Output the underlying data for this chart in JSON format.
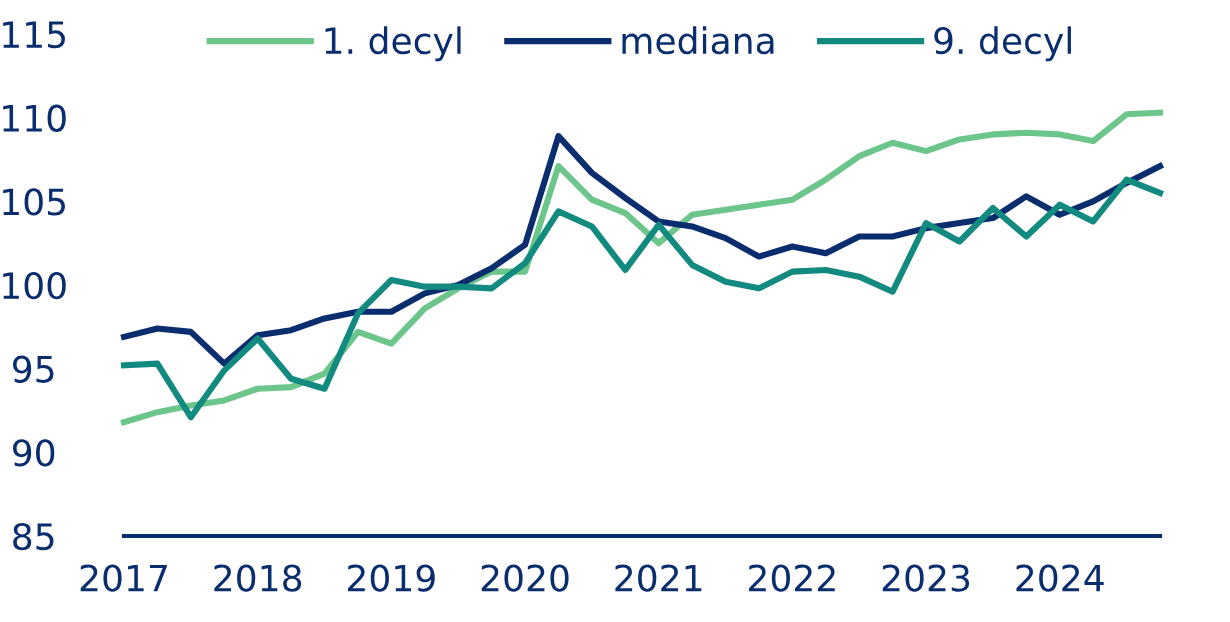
{
  "chart_data": {
    "type": "line",
    "x": [
      2017,
      2017.25,
      2017.5,
      2017.75,
      2018,
      2018.25,
      2018.5,
      2018.75,
      2019,
      2019.25,
      2019.5,
      2019.75,
      2020,
      2020.25,
      2020.5,
      2020.75,
      2021,
      2021.25,
      2021.5,
      2021.75,
      2022,
      2022.25,
      2022.5,
      2022.75,
      2023,
      2023.25,
      2023.5,
      2023.75,
      2024,
      2024.25,
      2024.5,
      2024.75
    ],
    "series": [
      {
        "name": "1. decyl",
        "color": "#6cc58a",
        "values": [
          91.8,
          92.4,
          92.8,
          93.1,
          93.8,
          93.9,
          94.7,
          97.2,
          96.5,
          98.6,
          99.8,
          100.8,
          100.8,
          107.1,
          105.1,
          104.3,
          102.5,
          104.2,
          104.5,
          104.8,
          105.1,
          106.3,
          107.7,
          108.5,
          108.0,
          108.7,
          109.0,
          109.1,
          109.0,
          108.6,
          110.2,
          110.3
        ]
      },
      {
        "name": "mediana",
        "color": "#0a2d6e",
        "values": [
          96.9,
          97.4,
          97.2,
          95.3,
          97.0,
          97.3,
          98.0,
          98.4,
          98.4,
          99.5,
          100.0,
          101.0,
          102.4,
          108.9,
          106.7,
          105.2,
          103.8,
          103.5,
          102.8,
          101.7,
          102.3,
          101.9,
          102.9,
          102.9,
          103.4,
          103.7,
          104.0,
          105.3,
          104.2,
          105.0,
          106.1,
          107.1
        ]
      },
      {
        "name": "9. decyl",
        "color": "#138a80",
        "values": [
          95.2,
          95.3,
          92.1,
          94.9,
          96.8,
          94.4,
          93.8,
          98.3,
          100.3,
          99.9,
          99.9,
          99.8,
          101.3,
          104.4,
          103.5,
          100.9,
          103.6,
          101.2,
          100.2,
          99.8,
          100.8,
          100.9,
          100.5,
          99.6,
          103.7,
          102.6,
          104.6,
          102.9,
          104.8,
          103.8,
          106.3,
          105.5
        ]
      }
    ],
    "xlim": [
      2017,
      2024.75
    ],
    "xticks": [
      2017,
      2018,
      2019,
      2020,
      2021,
      2022,
      2023,
      2024
    ],
    "ylim": [
      85,
      115
    ],
    "yticks": [
      85,
      90,
      95,
      100,
      105,
      110,
      115
    ],
    "grid": false,
    "legend": "top",
    "marker": "none",
    "line_style": "solid"
  }
}
